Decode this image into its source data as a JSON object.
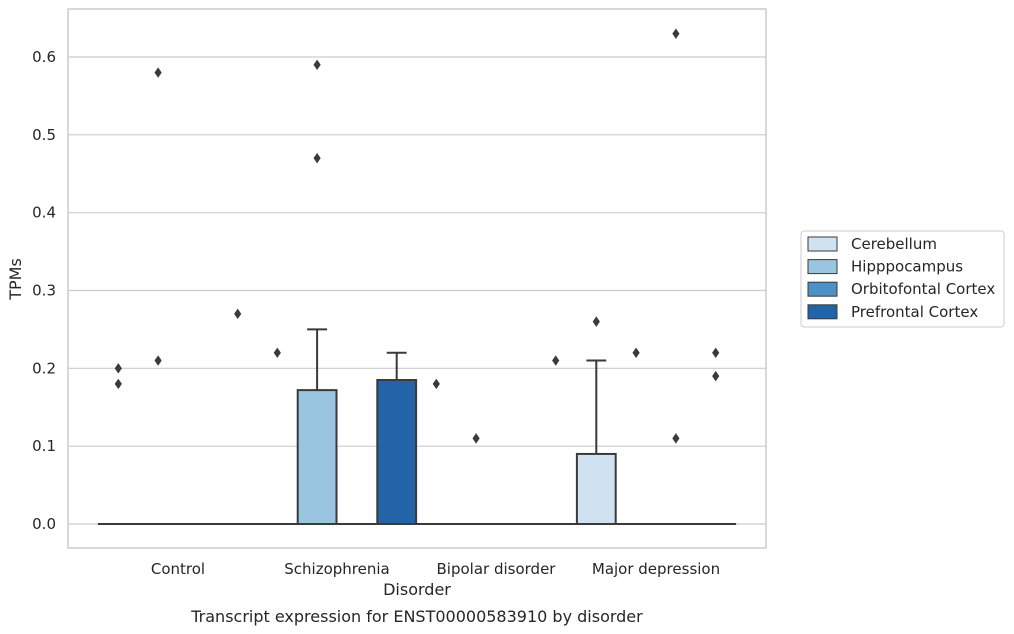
{
  "caption": "Transcript expression for ENST00000583910 by disorder",
  "colors": {
    "Cerebellum": "#d0e1f2",
    "Hipppocampus": "#9ac5e0",
    "Orbitofontal Cortex": "#4d91c6",
    "Prefrontal Cortex": "#2363a8",
    "grid": "#cccccc",
    "frame": "#cccccc",
    "line": "#3a3a3a"
  },
  "chart_data": {
    "type": "box",
    "xlabel": "Disorder",
    "ylabel": "TPMs",
    "ylim": [
      -0.03,
      0.66
    ],
    "yticks": [
      0.0,
      0.1,
      0.2,
      0.3,
      0.4,
      0.5,
      0.6
    ],
    "ytick_labels": [
      "0.0",
      "0.1",
      "0.2",
      "0.3",
      "0.4",
      "0.5",
      "0.6"
    ],
    "grid": true,
    "legend_placement": "right",
    "categories": [
      "Control",
      "Schizophrenia",
      "Bipolar disorder",
      "Major depression"
    ],
    "series": [
      {
        "name": "Cerebellum",
        "boxes": [
          {
            "q1": 0,
            "median": 0,
            "q3": 0,
            "whisker_low": 0,
            "whisker_high": 0,
            "outliers": [
              0.2,
              0.18
            ]
          },
          {
            "q1": 0,
            "median": 0,
            "q3": 0,
            "whisker_low": 0,
            "whisker_high": 0,
            "outliers": [
              0.22
            ]
          },
          {
            "q1": 0,
            "median": 0,
            "q3": 0,
            "whisker_low": 0,
            "whisker_high": 0,
            "outliers": [
              0.18
            ]
          },
          {
            "q1": 0,
            "median": 0,
            "q3": 0.09,
            "whisker_low": 0,
            "whisker_high": 0.21,
            "outliers": [
              0.26
            ]
          }
        ]
      },
      {
        "name": "Hipppocampus",
        "boxes": [
          {
            "q1": 0,
            "median": 0,
            "q3": 0,
            "whisker_low": 0,
            "whisker_high": 0,
            "outliers": [
              0.58,
              0.21
            ]
          },
          {
            "q1": 0,
            "median": 0,
            "q3": 0.172,
            "whisker_low": 0,
            "whisker_high": 0.25,
            "outliers": [
              0.59,
              0.47
            ]
          },
          {
            "q1": 0,
            "median": 0,
            "q3": 0,
            "whisker_low": 0,
            "whisker_high": 0,
            "outliers": [
              0.11
            ]
          },
          {
            "q1": 0,
            "median": 0,
            "q3": 0,
            "whisker_low": 0,
            "whisker_high": 0,
            "outliers": [
              0.22
            ]
          }
        ]
      },
      {
        "name": "Orbitofontal Cortex",
        "boxes": [
          {
            "q1": 0,
            "median": 0,
            "q3": 0,
            "whisker_low": 0,
            "whisker_high": 0,
            "outliers": []
          },
          {
            "q1": 0,
            "median": 0,
            "q3": 0,
            "whisker_low": 0,
            "whisker_high": 0,
            "outliers": []
          },
          {
            "q1": 0,
            "median": 0,
            "q3": 0,
            "whisker_low": 0,
            "whisker_high": 0,
            "outliers": []
          },
          {
            "q1": 0,
            "median": 0,
            "q3": 0,
            "whisker_low": 0,
            "whisker_high": 0,
            "outliers": [
              0.63,
              0.11
            ]
          }
        ]
      },
      {
        "name": "Prefrontal Cortex",
        "boxes": [
          {
            "q1": 0,
            "median": 0,
            "q3": 0,
            "whisker_low": 0,
            "whisker_high": 0,
            "outliers": [
              0.27
            ]
          },
          {
            "q1": 0,
            "median": 0,
            "q3": 0.185,
            "whisker_low": 0,
            "whisker_high": 0.22,
            "outliers": []
          },
          {
            "q1": 0,
            "median": 0,
            "q3": 0,
            "whisker_low": 0,
            "whisker_high": 0,
            "outliers": [
              0.21
            ]
          },
          {
            "q1": 0,
            "median": 0,
            "q3": 0,
            "whisker_low": 0,
            "whisker_high": 0,
            "outliers": [
              0.22,
              0.19
            ]
          }
        ]
      }
    ]
  }
}
